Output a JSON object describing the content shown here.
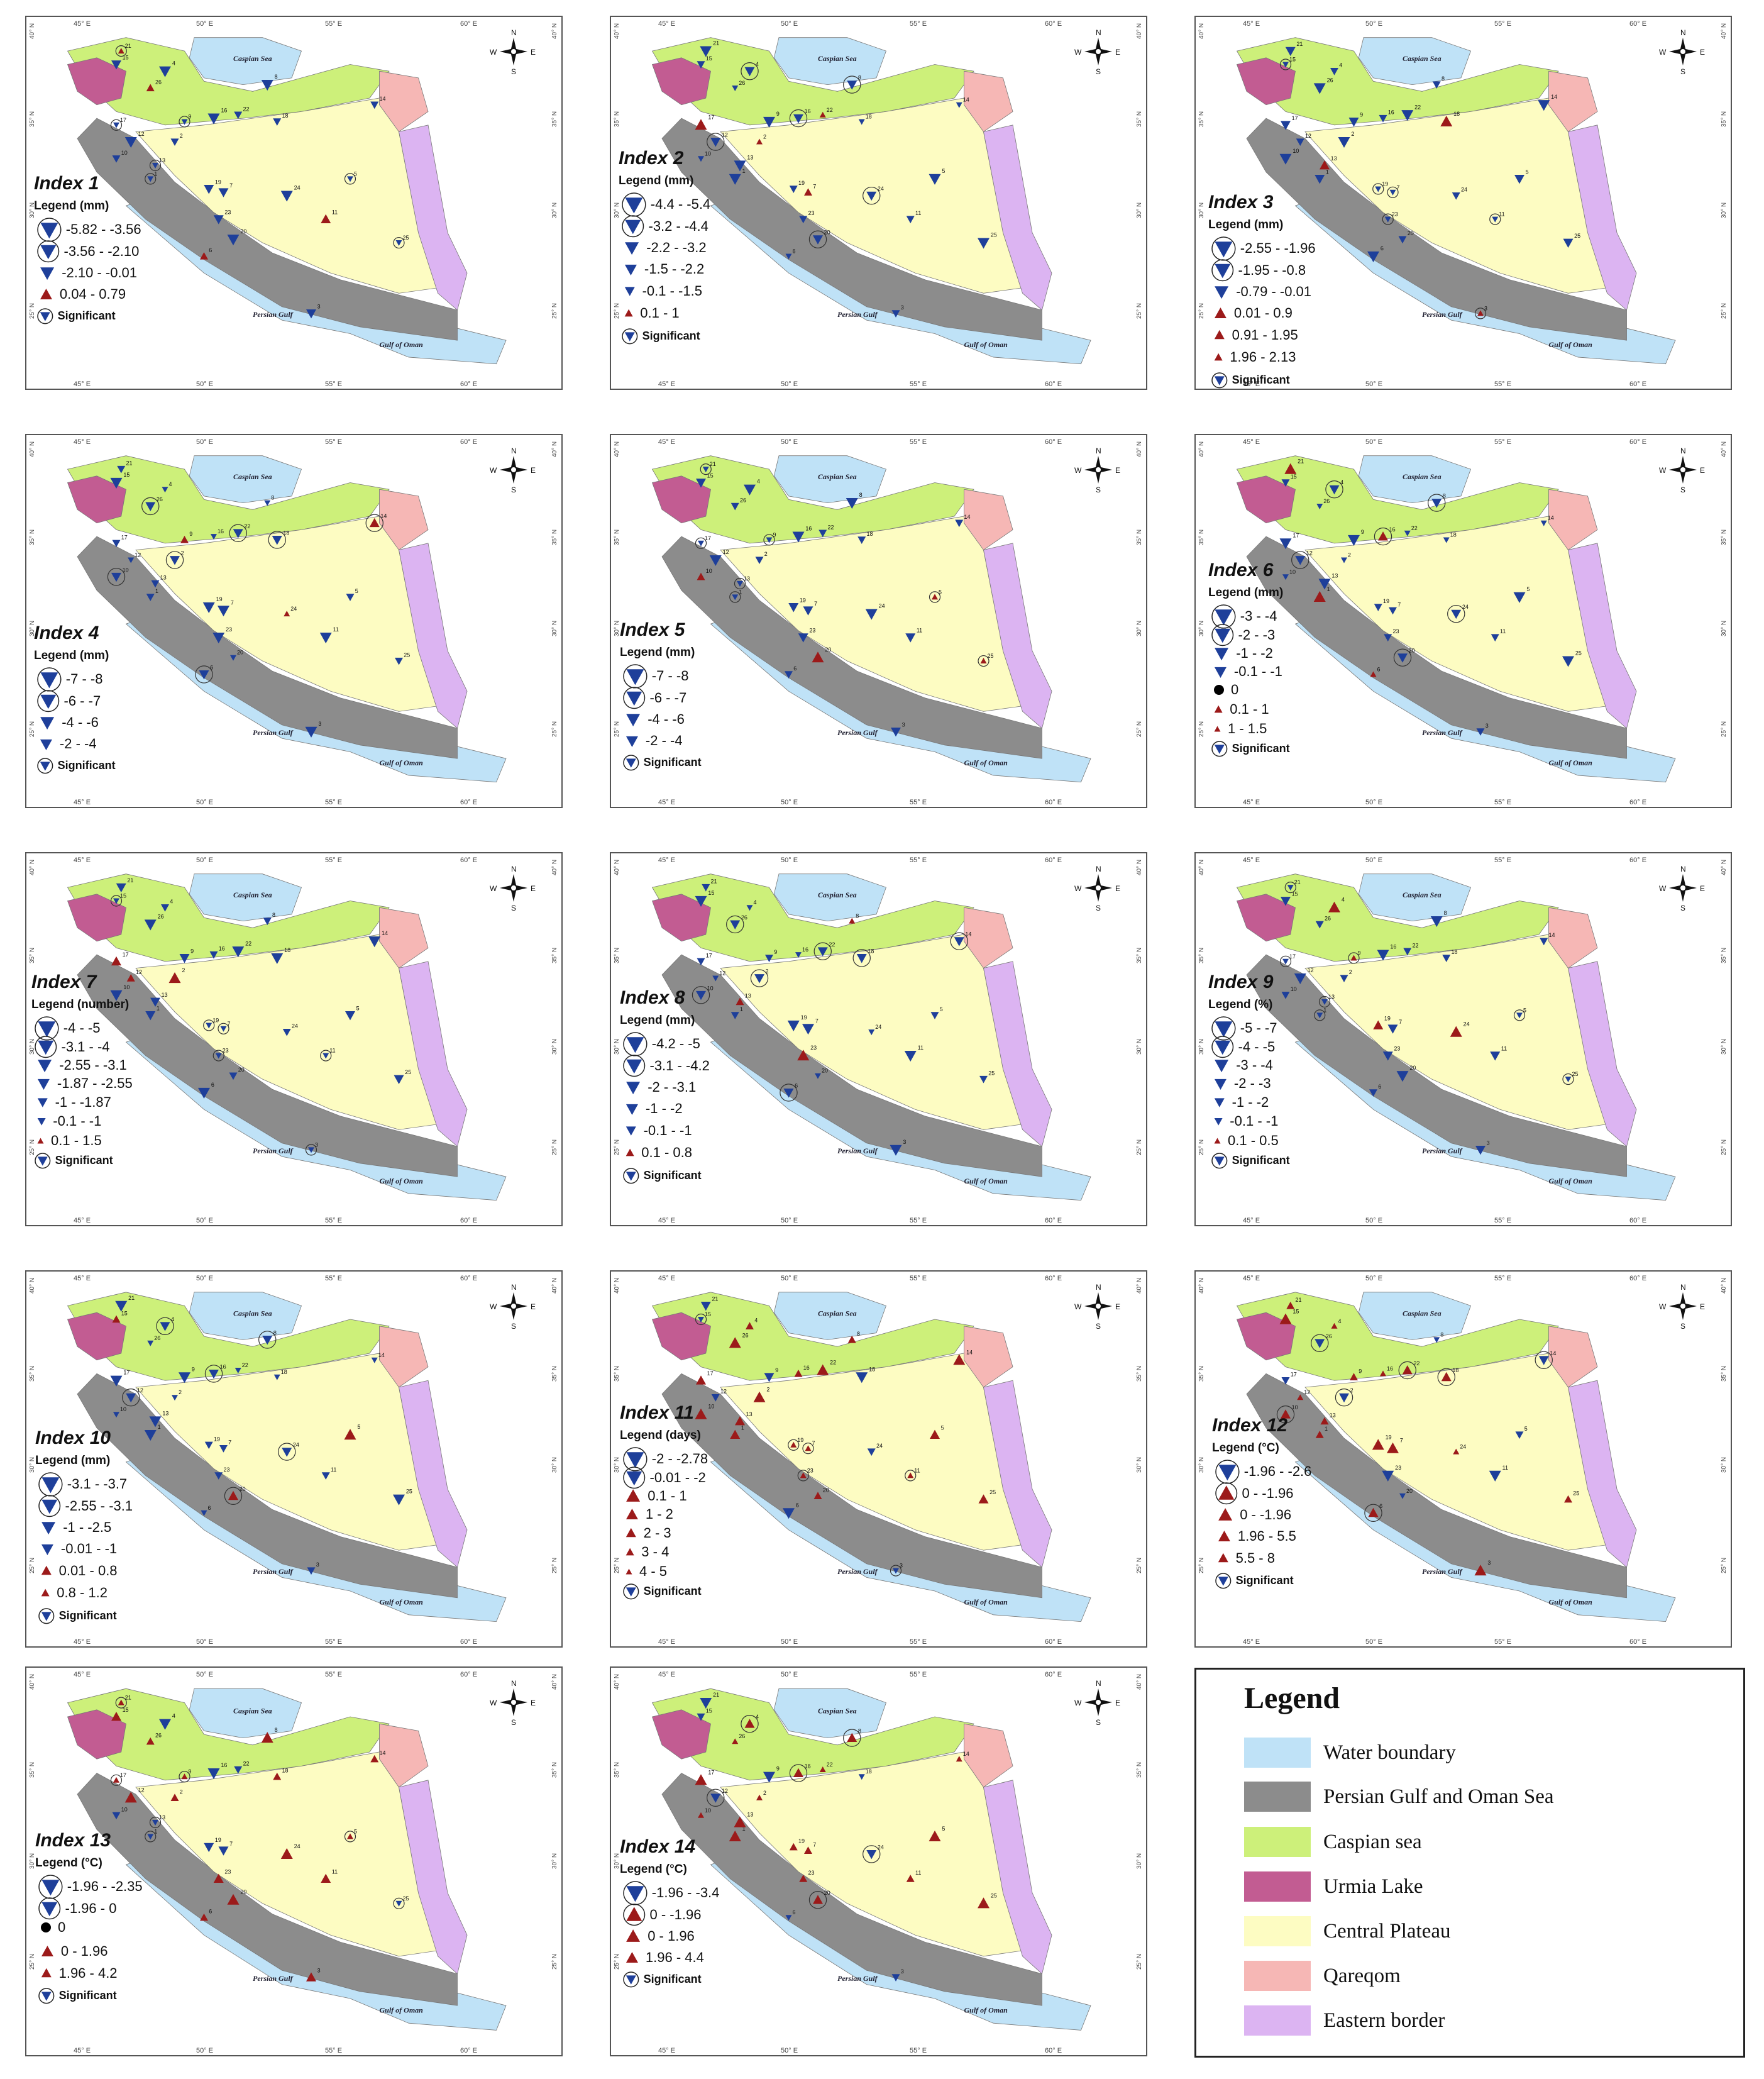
{
  "labels": {
    "lon": [
      "45° E",
      "50° E",
      "55° E",
      "60° E"
    ],
    "lat": [
      "40° N",
      "35° N",
      "30° N",
      "25° N"
    ],
    "compass": [
      "N",
      "S",
      "W",
      "E"
    ],
    "seas": {
      "caspian": "Caspian Sea",
      "gulf": "Persian Gulf",
      "oman": "Gulf of Oman"
    },
    "stations": [
      "1",
      "2",
      "3",
      "4",
      "5",
      "6",
      "7",
      "8",
      "9",
      "10",
      "11",
      "12",
      "13",
      "14",
      "15",
      "16",
      "17",
      "18",
      "19",
      "20",
      "21",
      "22",
      "23",
      "24",
      "25",
      "26"
    ]
  },
  "colors": {
    "water": "#bfe2f7",
    "gulf_region": "#8c8c8c",
    "caspian_region": "#cdf07a",
    "urmia": "#c25c92",
    "central": "#fdfcc2",
    "qareqom": "#f6b7b5",
    "eastern": "#dcb4f2",
    "decrease": "#1e3f9a",
    "increase": "#9c1a1a"
  },
  "panels": [
    {
      "title": "Index 1",
      "legend_title": "Legend (mm)",
      "entries": [
        "-5.82 - -3.56",
        "-3.56 - -2.10",
        "-2.10 - -0.01",
        "0.04 - 0.79"
      ],
      "significant": "Significant"
    },
    {
      "title": "Index 2",
      "legend_title": "Legend (mm)",
      "entries": [
        "-4.4 - -5.4",
        "-3.2 - -4.4",
        "-2.2 - -3.2",
        "-1.5 - -2.2",
        "-0.1 - -1.5",
        "0.1 - 1"
      ],
      "significant": "Significant"
    },
    {
      "title": "Index 3",
      "legend_title": "Legend (mm)",
      "entries": [
        "-2.55 - -1.96",
        "-1.95 - -0.8",
        "-0.79 - -0.01",
        "0.01 - 0.9",
        "0.91 - 1.95",
        "1.96 - 2.13"
      ],
      "significant": "Significant"
    },
    {
      "title": "Index 4",
      "legend_title": "Legend (mm)",
      "entries": [
        "-7 - -8",
        "-6 - -7",
        "-4 - -6",
        "-2 - -4"
      ],
      "significant": "Significant"
    },
    {
      "title": "Index 5",
      "legend_title": "Legend (mm)",
      "entries": [
        "-7 - -8",
        "-6 - -7",
        "-4 - -6",
        "-2 - -4"
      ],
      "significant": "Significant"
    },
    {
      "title": "Index 6",
      "legend_title": "Legend (mm)",
      "entries": [
        "-3 - -4",
        "-2 - -3",
        "-1 - -2",
        "-0.1 - -1",
        "0",
        "0.1 - 1",
        "1 - 1.5"
      ],
      "significant": "Significant"
    },
    {
      "title": "Index 7",
      "legend_title": "Legend (number)",
      "entries": [
        "-4 - -5",
        "-3.1 - -4",
        "-2.55 - -3.1",
        "-1.87 - -2.55",
        "-1 - -1.87",
        "-0.1 - -1",
        "0.1 - 1.5"
      ],
      "significant": "Significant"
    },
    {
      "title": "Index 8",
      "legend_title": "Legend (mm)",
      "entries": [
        "-4.2 - -5",
        "-3.1 - -4.2",
        "-2 - -3.1",
        "-1 - -2",
        "-0.1 - -1",
        "0.1 - 0.8"
      ],
      "significant": "Significant"
    },
    {
      "title": "Index 9",
      "legend_title": "Legend (%)",
      "entries": [
        "-5 - -7",
        "-4 - -5",
        "-3 - -4",
        "-2 - -3",
        "-1 - -2",
        "-0.1 - -1",
        "0.1 - 0.5"
      ],
      "significant": "Significant"
    },
    {
      "title": "Index 10",
      "legend_title": "Legend (mm)",
      "entries": [
        "-3.1 - -3.7",
        "-2.55 - -3.1",
        "-1 - -2.5",
        "-0.01 - -1",
        "0.01 - 0.8",
        "0.8 - 1.2"
      ],
      "significant": "Significant"
    },
    {
      "title": "Index 11",
      "legend_title": "Legend (days)",
      "entries": [
        "-2 - -2.78",
        "-0.01 - -2",
        "0.1 - 1",
        "1 - 2",
        "2 - 3",
        "3 - 4",
        "4 - 5"
      ],
      "significant": "Significant"
    },
    {
      "title": "Index 12",
      "legend_title": "Legend (°C)",
      "entries": [
        "-1.96 - -2.6",
        "0 - -1.96",
        "0 - -1.96",
        "1.96 - 5.5",
        "5.5 - 8"
      ],
      "significant": "Significant"
    },
    {
      "title": "Index 13",
      "legend_title": "Legend (°C)",
      "entries": [
        "-1.96 - -2.35",
        "-1.96 - 0",
        "0",
        "0 - 1.96",
        "1.96 - 4.2"
      ],
      "significant": "Significant"
    },
    {
      "title": "Index 14",
      "legend_title": "Legend (°C)",
      "entries": [
        "-1.96 - -3.4",
        "0 - -1.96",
        "0 - 1.96",
        "1.96 - 4.4"
      ],
      "significant": "Significant"
    }
  ],
  "main_legend": {
    "title": "Legend",
    "items": [
      "Water boundary",
      "Persian Gulf and Oman Sea",
      "Caspian sea",
      "Urmia Lake",
      "Central Plateau",
      "Qareqom",
      "Eastern border"
    ]
  }
}
